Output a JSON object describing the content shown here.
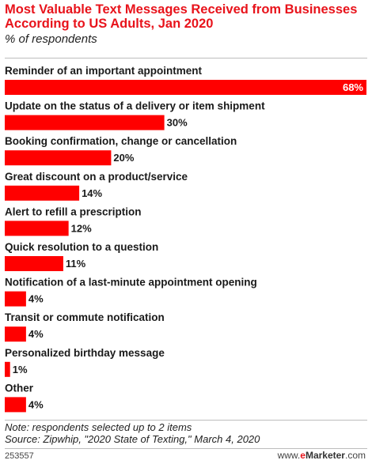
{
  "header": {
    "title": "Most Valuable Text Messages Received from Businesses According to US Adults, Jan 2020",
    "subtitle": "% of respondents"
  },
  "chart_data": {
    "type": "bar",
    "orientation": "horizontal",
    "title": "Most Valuable Text Messages Received from Businesses According to US Adults, Jan 2020",
    "subtitle": "% of respondents",
    "categories": [
      "Reminder of an important appointment",
      "Update on the status of a delivery or item shipment",
      "Booking confirmation, change or cancellation",
      "Great discount on a product/service",
      "Alert to refill a prescription",
      "Quick resolution to a question",
      "Notification of a last-minute appointment opening",
      "Transit or commute notification",
      "Personalized birthday message",
      "Other"
    ],
    "values": [
      68,
      30,
      20,
      14,
      12,
      11,
      4,
      4,
      1,
      4
    ],
    "value_labels": [
      "68%",
      "30%",
      "20%",
      "14%",
      "12%",
      "11%",
      "4%",
      "4%",
      "1%",
      "4%"
    ],
    "unit": "%",
    "xlim": [
      0,
      68
    ],
    "grid": false,
    "bar_color": "#ff0000"
  },
  "footer": {
    "note": "Note: respondents selected up to 2 items",
    "source": "Source: Zipwhip, \"2020 State of Texting,\" March 4, 2020",
    "chart_id": "253557",
    "brand_www": "www.",
    "brand_e": "e",
    "brand_name": "Marketer",
    "brand_com": ".com"
  }
}
